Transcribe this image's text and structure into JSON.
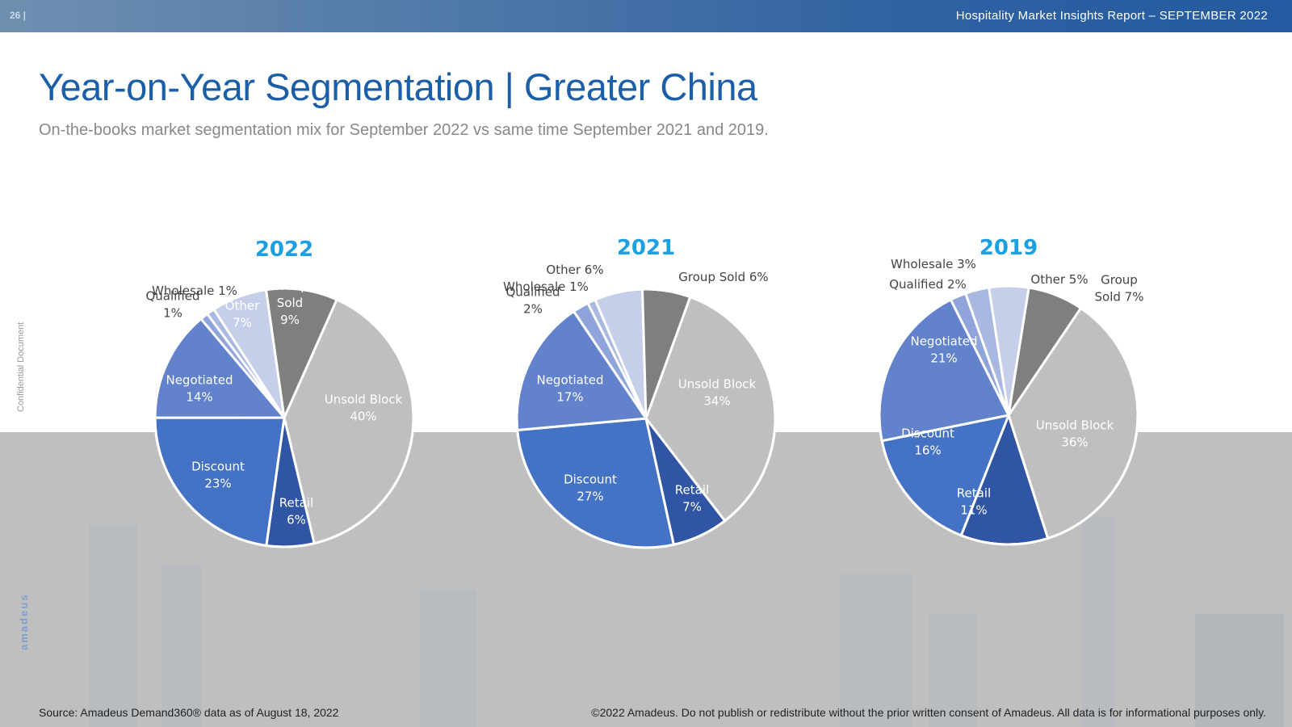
{
  "header": {
    "page_number": "26 |",
    "report_title": "Hospitality Market Insights Report – SEPTEMBER 2022"
  },
  "title": "Year-on-Year Segmentation | Greater China",
  "subtitle": "On-the-books market segmentation mix for September 2022 vs same time September 2021 and 2019.",
  "side_label": "Confidential Document",
  "brand": "amadeus",
  "footer": {
    "source": "Source: Amadeus Demand360® data as of August 18, 2022",
    "copyright": "©2022 Amadeus. Do not publish or redistribute without the prior written consent of Amadeus. All data is for informational purposes only."
  },
  "colors": {
    "title": "#1b5fa8",
    "year_label": "#1ba1e2",
    "segments": {
      "Unsold Block": "#bfbfbf",
      "Retail": "#2f55a4",
      "Discount": "#4472c4",
      "Negotiated": "#6283cc",
      "Qualified": "#8ea4db",
      "Wholesale": "#a9b8e1",
      "Other": "#c6cfea",
      "Group Sold": "#7f7f7f"
    }
  },
  "chart_data": [
    {
      "type": "pie",
      "title": "2022",
      "segments": [
        {
          "name": "Unsold Block",
          "value": 40,
          "label": [
            "Unsold Block",
            "40%"
          ]
        },
        {
          "name": "Retail",
          "value": 6,
          "label": [
            "Retail",
            "6%"
          ]
        },
        {
          "name": "Discount",
          "value": 23,
          "label": [
            "Discount",
            "23%"
          ]
        },
        {
          "name": "Negotiated",
          "value": 14,
          "label": [
            "Negotiated",
            "14%"
          ]
        },
        {
          "name": "Qualified",
          "value": 1,
          "label": [
            "Qualified",
            "1%"
          ]
        },
        {
          "name": "Wholesale",
          "value": 1,
          "label": [
            "Wholesale 1%"
          ]
        },
        {
          "name": "Other",
          "value": 7,
          "label": [
            "Other",
            "7%"
          ]
        },
        {
          "name": "Group Sold",
          "value": 9,
          "label": [
            "Group",
            "Sold",
            "9%"
          ]
        }
      ]
    },
    {
      "type": "pie",
      "title": "2021",
      "segments": [
        {
          "name": "Unsold Block",
          "value": 34,
          "label": [
            "Unsold Block",
            "34%"
          ]
        },
        {
          "name": "Retail",
          "value": 7,
          "label": [
            "Retail",
            "7%"
          ]
        },
        {
          "name": "Discount",
          "value": 27,
          "label": [
            "Discount",
            "27%"
          ]
        },
        {
          "name": "Negotiated",
          "value": 17,
          "label": [
            "Negotiated",
            "17%"
          ]
        },
        {
          "name": "Qualified",
          "value": 2,
          "label": [
            "Qualified",
            "2%"
          ]
        },
        {
          "name": "Wholesale",
          "value": 1,
          "label": [
            "Wholesale 1%"
          ]
        },
        {
          "name": "Other",
          "value": 6,
          "label": [
            "Other 6%"
          ]
        },
        {
          "name": "Group Sold",
          "value": 6,
          "label": [
            "Group Sold 6%"
          ]
        }
      ]
    },
    {
      "type": "pie",
      "title": "2019",
      "segments": [
        {
          "name": "Unsold Block",
          "value": 36,
          "label": [
            "Unsold Block",
            "36%"
          ]
        },
        {
          "name": "Retail",
          "value": 11,
          "label": [
            "Retail",
            "11%"
          ]
        },
        {
          "name": "Discount",
          "value": 16,
          "label": [
            "Discount",
            "16%"
          ]
        },
        {
          "name": "Negotiated",
          "value": 21,
          "label": [
            "Negotiated",
            "21%"
          ]
        },
        {
          "name": "Qualified",
          "value": 2,
          "label": [
            "Qualified 2%"
          ]
        },
        {
          "name": "Wholesale",
          "value": 3,
          "label": [
            "Wholesale 3%"
          ]
        },
        {
          "name": "Other",
          "value": 5,
          "label": [
            "Other 5%"
          ]
        },
        {
          "name": "Group Sold",
          "value": 7,
          "label": [
            "Group",
            "Sold 7%"
          ]
        }
      ]
    }
  ]
}
